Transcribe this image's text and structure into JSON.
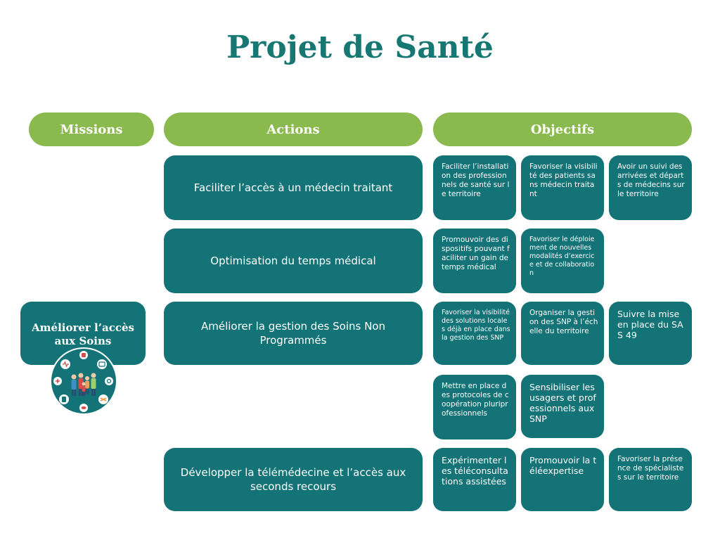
{
  "title": "Projet de Santé",
  "headers": {
    "missions": "Missions",
    "actions": "Actions",
    "objectifs": "Objectifs"
  },
  "mission": {
    "label": "Améliorer l’accès aux Soins"
  },
  "actions": [
    "Faciliter l’accès à un médecin traitant",
    "Optimisation du temps médical",
    "Améliorer la gestion des Soins Non Programmés",
    "Développer la télémédecine et l’accès aux seconds recours"
  ],
  "objectives": {
    "a1": [
      "Faciliter l’installation des professionnels de santé sur le territoire",
      "Favoriser la visibilité des patients sans médecin traitant",
      "Avoir un suivi des arrivées et départs de médecins sur le territoire"
    ],
    "a2": [
      "Promouvoir des dispositifs pouvant faciliter un gain de temps médical",
      "Favoriser le déploiement de nouvelles modalités d’exercice et de collaboration"
    ],
    "a3": [
      "Favoriser la visibilité des solutions locales déjà en place dans la gestion des SNP",
      "Organiser la gestion des SNP à l’échelle du territoire",
      "Suivre la mise en place du SAS 49",
      "Mettre en place des protocoles de coopération pluriprofessionnels",
      "Sensibiliser les usagers et professionnels aux SNP"
    ],
    "a4": [
      "Expérimenter les téléconsultations assistées",
      "Promouvoir la téléexpertise",
      "Favoriser la présence de spécialistes sur le territoire"
    ]
  },
  "colors": {
    "teal": "#137377",
    "title_teal": "#177873",
    "header_green": "#8ab94e",
    "white": "#ffffff"
  },
  "icons": [
    "family-health-emblem-icon"
  ]
}
